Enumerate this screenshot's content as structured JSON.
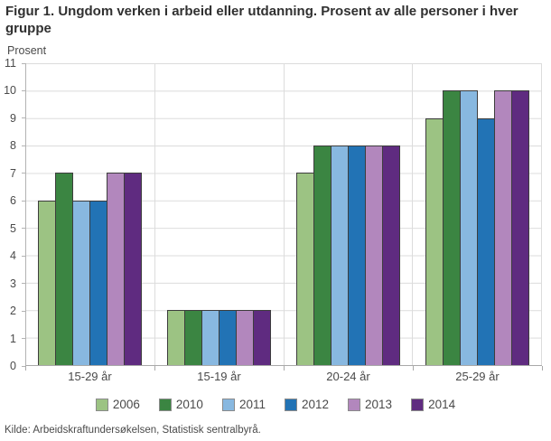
{
  "figure": {
    "title": "Figur 1. Ungdom verken i arbeid eller utdanning. Prosent av alle personer i hver gruppe",
    "source": "Kilde: Arbeidskraftundersøkelsen, Statistisk sentralbyrå."
  },
  "chart_data": {
    "type": "bar",
    "title": "Figur 1. Ungdom verken i arbeid eller utdanning. Prosent av alle personer i hver gruppe",
    "ylabel": "Prosent",
    "xlabel": "",
    "categories": [
      "15-29 år",
      "15-19 år",
      "20-24 år",
      "25-29 år"
    ],
    "series": [
      {
        "name": "2006",
        "color": "#9cc383",
        "values": [
          6,
          2,
          7,
          9
        ]
      },
      {
        "name": "2010",
        "color": "#3b8542",
        "values": [
          7,
          2,
          8,
          10
        ]
      },
      {
        "name": "2011",
        "color": "#88b8e0",
        "values": [
          6,
          2,
          8,
          10
        ]
      },
      {
        "name": "2012",
        "color": "#2273b5",
        "values": [
          6,
          2,
          8,
          9
        ]
      },
      {
        "name": "2013",
        "color": "#b287bd",
        "values": [
          7,
          2,
          8,
          10
        ]
      },
      {
        "name": "2014",
        "color": "#5f2b80",
        "values": [
          7,
          2,
          8,
          10
        ]
      }
    ],
    "ylim": [
      0,
      11
    ],
    "yticks": [
      0,
      1,
      2,
      3,
      4,
      5,
      6,
      7,
      8,
      9,
      10,
      11
    ],
    "grid": true,
    "legend_position": "bottom"
  }
}
